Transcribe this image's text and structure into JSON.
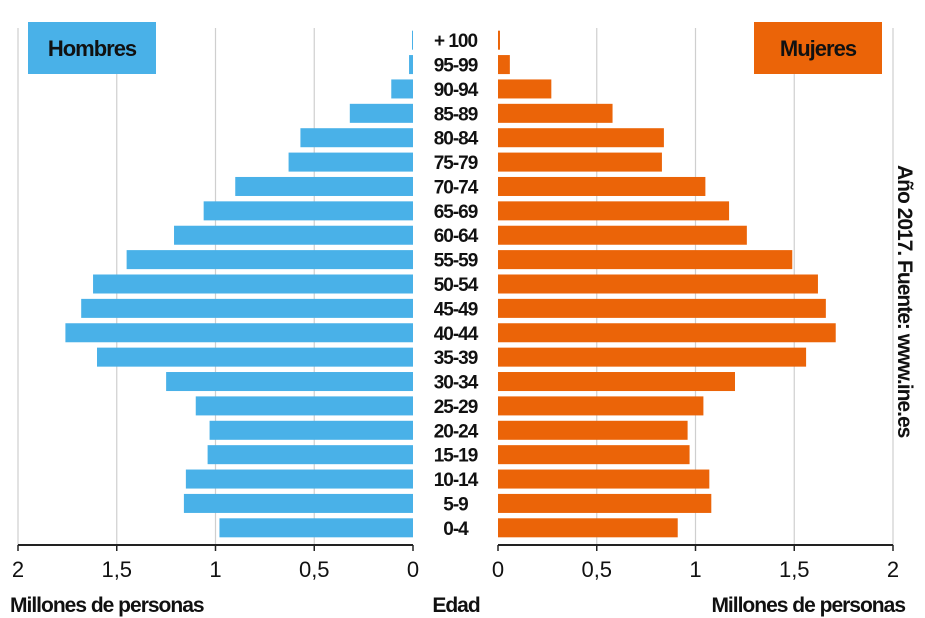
{
  "chart_data": {
    "type": "bar",
    "orientation": "horizontal-population-pyramid",
    "categories": [
      "0-4",
      "5-9",
      "10-14",
      "15-19",
      "20-24",
      "25-29",
      "30-34",
      "35-39",
      "40-44",
      "45-49",
      "50-54",
      "55-59",
      "60-64",
      "65-69",
      "70-74",
      "75-79",
      "80-84",
      "85-89",
      "90-94",
      "95-99",
      "+ 100"
    ],
    "series": [
      {
        "name": "Hombres",
        "color": "#49b1e8",
        "values": [
          0.98,
          1.16,
          1.15,
          1.04,
          1.03,
          1.1,
          1.25,
          1.6,
          1.76,
          1.68,
          1.62,
          1.45,
          1.21,
          1.06,
          0.9,
          0.63,
          0.57,
          0.32,
          0.11,
          0.02,
          0.003
        ]
      },
      {
        "name": "Mujeres",
        "color": "#eb6408",
        "values": [
          0.91,
          1.08,
          1.07,
          0.97,
          0.96,
          1.04,
          1.2,
          1.56,
          1.71,
          1.66,
          1.62,
          1.49,
          1.26,
          1.17,
          1.05,
          0.83,
          0.84,
          0.58,
          0.27,
          0.06,
          0.01
        ]
      }
    ],
    "xlim": [
      0,
      2
    ],
    "xticks_left": [
      "2",
      "1,5",
      "1",
      "0,5",
      "0"
    ],
    "xticks_right": [
      "0",
      "0,5",
      "1",
      "1,5",
      "2"
    ],
    "xlabel_left": "Millones de personas",
    "xlabel_center": "Edad",
    "xlabel_right": "Millones de personas",
    "legend_left": "Hombres",
    "legend_right": "Mujeres",
    "source": "Año 2017. Fuente: www.ine.es",
    "grid": "vertical"
  }
}
